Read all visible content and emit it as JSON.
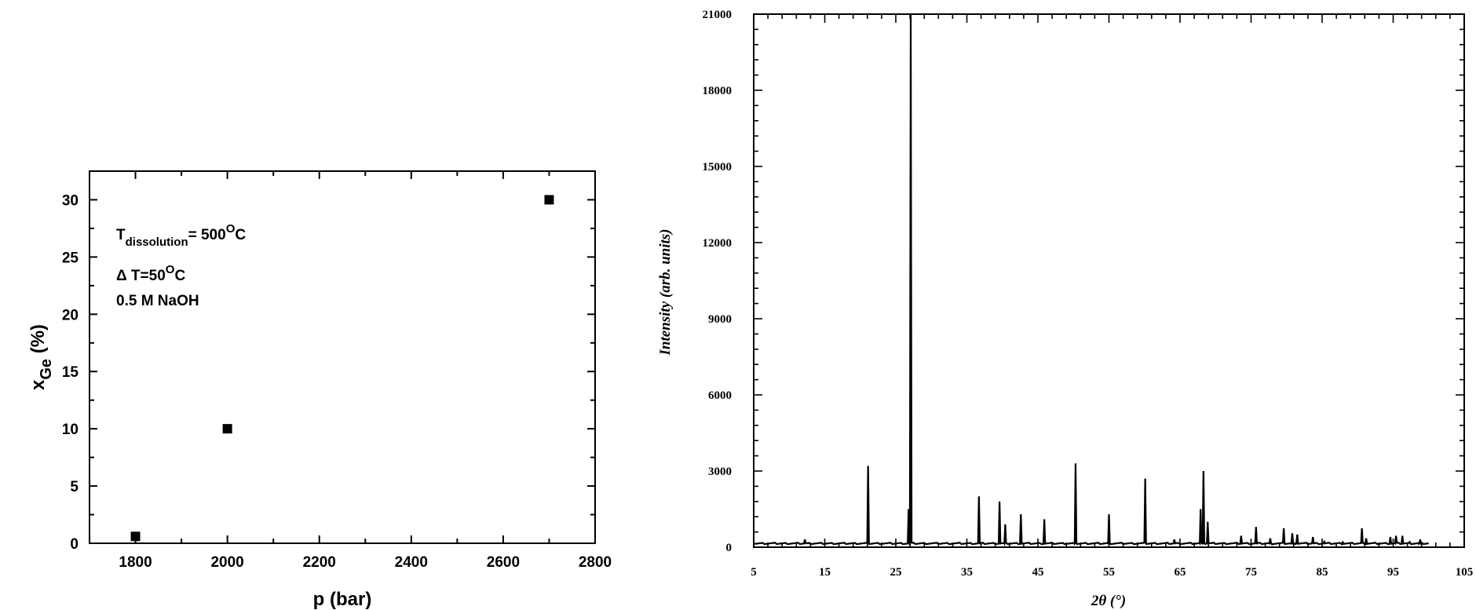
{
  "chart_data": [
    {
      "type": "scatter",
      "title": "",
      "xlabel": "p (bar)",
      "ylabel_main": "x",
      "ylabel_sub": "Ge",
      "ylabel_unit": " (%)",
      "xlim": [
        1700,
        2800
      ],
      "ylim": [
        0,
        32.5
      ],
      "x_ticks": [
        1800,
        2000,
        2200,
        2400,
        2600,
        2800
      ],
      "y_ticks": [
        0,
        5,
        10,
        15,
        20,
        25,
        30
      ],
      "grid": false,
      "series": [
        {
          "x": [
            1800,
            2000,
            2700
          ],
          "y": [
            0.6,
            10,
            30
          ]
        }
      ],
      "annotations": {
        "line1_main": "T",
        "line1_sub": "dissolution",
        "line1_rest": "= 500",
        "line1_sup": "O",
        "line1_end": "C",
        "line2_pre": "Δ T=50",
        "line2_sup": "O",
        "line2_end": "C",
        "line3": "0.5 M NaOH"
      }
    },
    {
      "type": "line",
      "title": "",
      "xlabel": "2θ (°)",
      "ylabel": "Intensity (arb. units)",
      "xlim": [
        5,
        105
      ],
      "ylim": [
        0,
        21000
      ],
      "x_ticks": [
        5,
        15,
        25,
        35,
        45,
        55,
        65,
        75,
        85,
        95,
        105
      ],
      "y_ticks": [
        0,
        3000,
        6000,
        9000,
        12000,
        15000,
        18000,
        21000
      ],
      "grid": false,
      "baseline": 150,
      "x_end": 100,
      "peaks": [
        {
          "x": 12.2,
          "y": 300
        },
        {
          "x": 21.1,
          "y": 3200
        },
        {
          "x": 26.8,
          "y": 1500
        },
        {
          "x": 27.1,
          "y": 21000
        },
        {
          "x": 36.7,
          "y": 2000
        },
        {
          "x": 39.6,
          "y": 1800
        },
        {
          "x": 40.4,
          "y": 900
        },
        {
          "x": 42.6,
          "y": 1300
        },
        {
          "x": 45.9,
          "y": 1100
        },
        {
          "x": 50.3,
          "y": 3300
        },
        {
          "x": 55.0,
          "y": 1300
        },
        {
          "x": 60.1,
          "y": 2700
        },
        {
          "x": 64.2,
          "y": 300
        },
        {
          "x": 67.9,
          "y": 1500
        },
        {
          "x": 68.3,
          "y": 3000
        },
        {
          "x": 68.9,
          "y": 1000
        },
        {
          "x": 73.6,
          "y": 450
        },
        {
          "x": 75.7,
          "y": 800
        },
        {
          "x": 77.7,
          "y": 350
        },
        {
          "x": 79.6,
          "y": 750
        },
        {
          "x": 80.8,
          "y": 550
        },
        {
          "x": 81.5,
          "y": 500
        },
        {
          "x": 83.7,
          "y": 400
        },
        {
          "x": 85.3,
          "y": 220
        },
        {
          "x": 87.9,
          "y": 200
        },
        {
          "x": 90.6,
          "y": 750
        },
        {
          "x": 91.2,
          "y": 350
        },
        {
          "x": 94.6,
          "y": 400
        },
        {
          "x": 95.4,
          "y": 450
        },
        {
          "x": 96.3,
          "y": 450
        },
        {
          "x": 97.3,
          "y": 200
        },
        {
          "x": 98.8,
          "y": 300
        }
      ]
    }
  ]
}
